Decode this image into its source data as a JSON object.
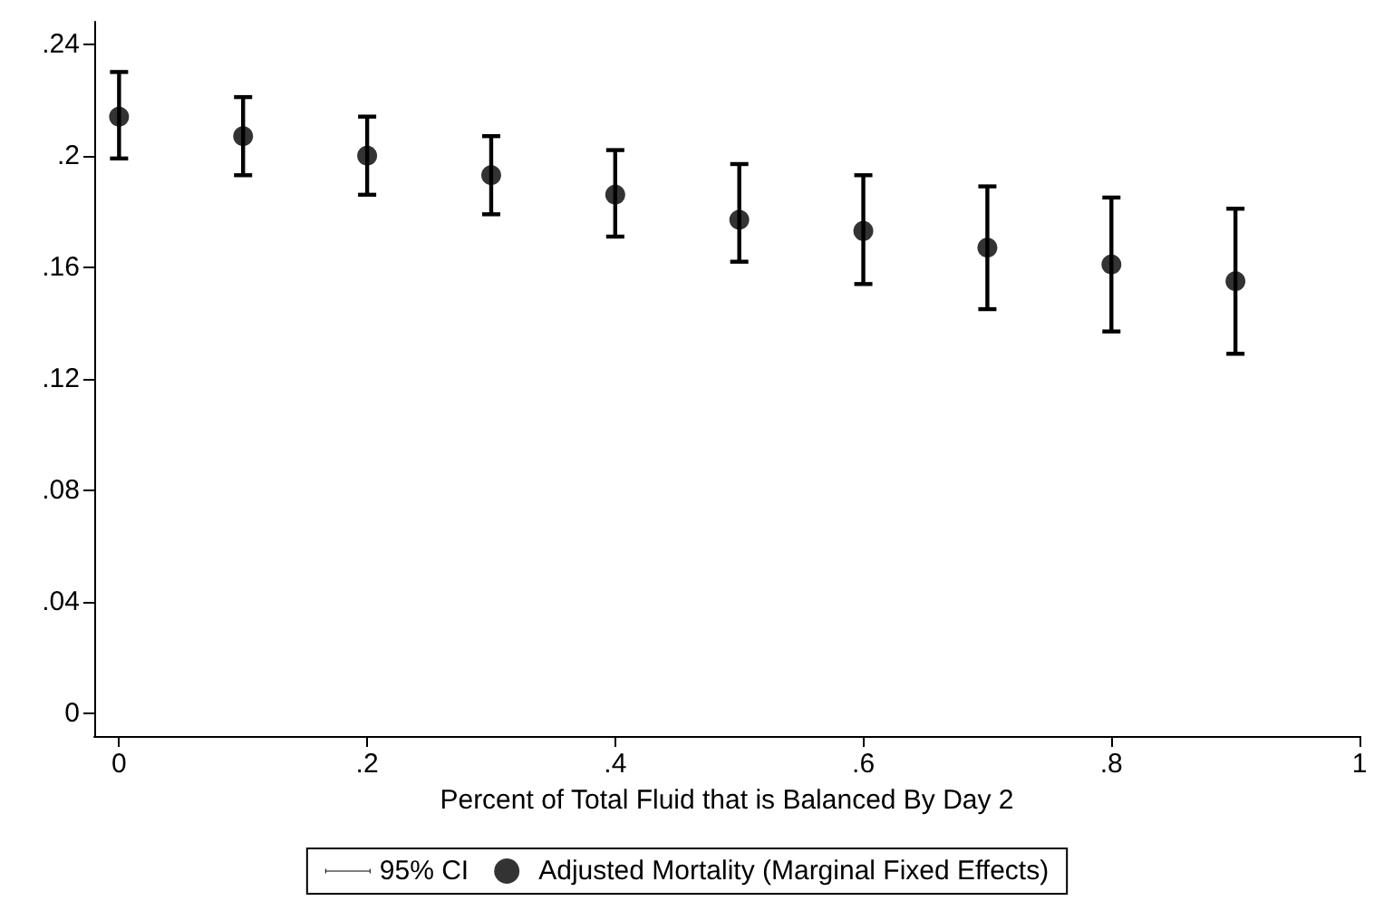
{
  "chart_data": {
    "type": "scatter",
    "xlabel": "Percent of Total Fluid that is Balanced By Day 2",
    "x": [
      0,
      0.1,
      0.2,
      0.3,
      0.4,
      0.5,
      0.6,
      0.7,
      0.8,
      0.9
    ],
    "series": [
      {
        "name": "Adjusted Mortality (Marginal Fixed Effects)",
        "color": "#000000",
        "values": [
          0.214,
          0.207,
          0.2,
          0.193,
          0.186,
          0.177,
          0.173,
          0.167,
          0.161,
          0.155
        ],
        "errors": [
          [
            0.199,
            0.23
          ],
          [
            0.193,
            0.221
          ],
          [
            0.186,
            0.214
          ],
          [
            0.179,
            0.207
          ],
          [
            0.171,
            0.202
          ],
          [
            0.162,
            0.197
          ],
          [
            0.154,
            0.193
          ],
          [
            0.145,
            0.189
          ],
          [
            0.137,
            0.185
          ],
          [
            0.129,
            0.181
          ]
        ]
      }
    ],
    "annotations": [
      "95% CI"
    ],
    "xlim": [
      -0.02,
      1
    ],
    "ylim": [
      -0.008,
      0.248
    ],
    "xticks": [
      0,
      {
        "value": 0.2,
        "label": ".2"
      },
      {
        "value": 0.4,
        "label": ".4"
      },
      {
        "value": 0.6,
        "label": ".6"
      },
      {
        "value": 0.8,
        "label": ".8"
      },
      1
    ],
    "yticks": [
      0,
      {
        "value": 0.04,
        "label": ".04"
      },
      {
        "value": 0.08,
        "label": ".08"
      },
      {
        "value": 0.12,
        "label": ".12"
      },
      {
        "value": 0.16,
        "label": ".16"
      },
      {
        "value": 0.2,
        "label": ".2"
      },
      {
        "value": 0.24,
        "label": ".24"
      }
    ],
    "marker": "circle",
    "grid": false,
    "legend": "bottom"
  }
}
